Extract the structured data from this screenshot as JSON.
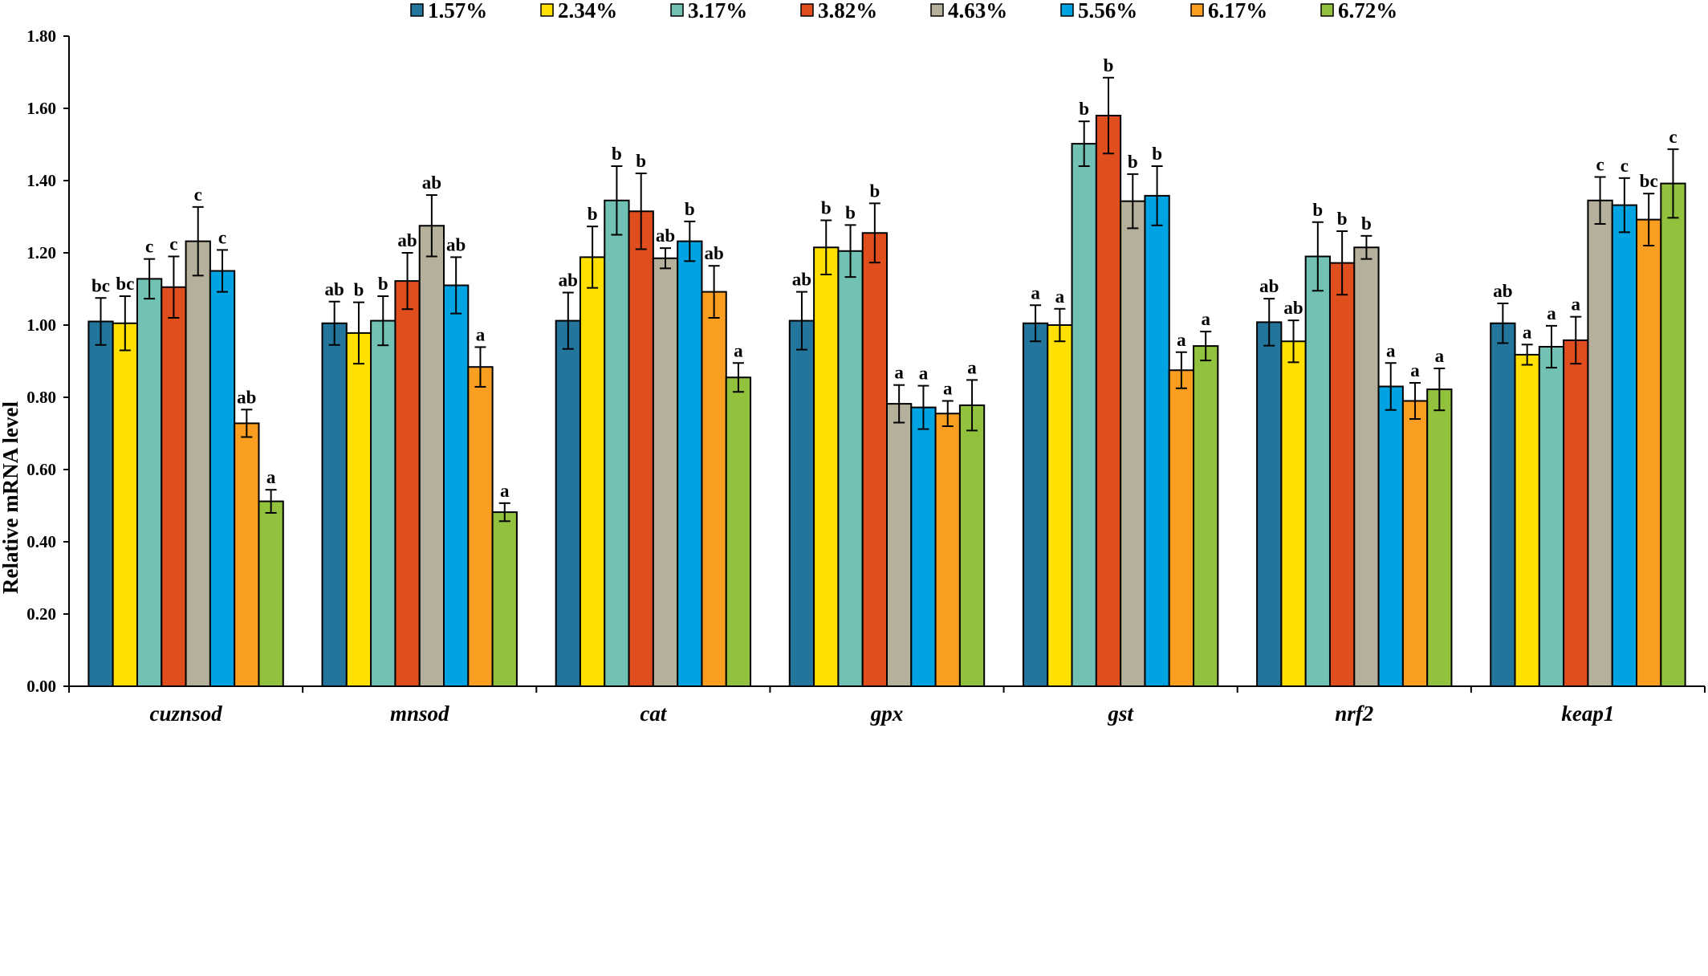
{
  "chart_data": {
    "type": "bar",
    "title": "",
    "xlabel": "",
    "ylabel": "Relative mRNA level",
    "ylim": [
      0,
      1.8
    ],
    "yticks": [
      "0.00",
      "0.20",
      "0.40",
      "0.60",
      "0.80",
      "1.00",
      "1.20",
      "1.40",
      "1.60",
      "1.80"
    ],
    "grid": false,
    "legend_position": "top",
    "categories": [
      "cuznsod",
      "mnsod",
      "cat",
      "gpx",
      "gst",
      "nrf2",
      "keap1"
    ],
    "series": [
      {
        "name": "1.57%",
        "color": "#23759B",
        "values": [
          1.01,
          1.005,
          1.012,
          1.012,
          1.005,
          1.008,
          1.005
        ],
        "errors": [
          0.065,
          0.06,
          0.078,
          0.08,
          0.05,
          0.065,
          0.055
        ],
        "labels": [
          "bc",
          "ab",
          "ab",
          "ab",
          "a",
          "ab",
          "ab"
        ]
      },
      {
        "name": "2.34%",
        "color": "#FFE000",
        "values": [
          1.005,
          0.978,
          1.188,
          1.215,
          1.0,
          0.955,
          0.918
        ],
        "errors": [
          0.075,
          0.085,
          0.085,
          0.075,
          0.045,
          0.058,
          0.028
        ],
        "labels": [
          "bc",
          "b",
          "b",
          "b",
          "a",
          "ab",
          "a"
        ]
      },
      {
        "name": "3.17%",
        "color": "#71C2B4",
        "values": [
          1.128,
          1.012,
          1.345,
          1.205,
          1.502,
          1.19,
          0.94
        ],
        "errors": [
          0.055,
          0.068,
          0.095,
          0.072,
          0.062,
          0.095,
          0.058
        ],
        "labels": [
          "c",
          "b",
          "b",
          "b",
          "b",
          "b",
          "a"
        ]
      },
      {
        "name": "3.82%",
        "color": "#E04E1E",
        "values": [
          1.105,
          1.122,
          1.315,
          1.255,
          1.58,
          1.172,
          0.958
        ],
        "errors": [
          0.085,
          0.078,
          0.105,
          0.082,
          0.105,
          0.088,
          0.065
        ],
        "labels": [
          "c",
          "ab",
          "b",
          "b",
          "b",
          "b",
          "a"
        ]
      },
      {
        "name": "4.63%",
        "color": "#B4B09C",
        "values": [
          1.232,
          1.275,
          1.185,
          0.782,
          1.343,
          1.215,
          1.345
        ],
        "errors": [
          0.095,
          0.085,
          0.028,
          0.052,
          0.075,
          0.032,
          0.065
        ],
        "labels": [
          "c",
          "ab",
          "ab",
          "a",
          "b",
          "b",
          "c"
        ]
      },
      {
        "name": "5.56%",
        "color": "#00A3E2",
        "values": [
          1.15,
          1.11,
          1.232,
          0.772,
          1.358,
          0.83,
          1.332
        ],
        "errors": [
          0.058,
          0.078,
          0.055,
          0.06,
          0.082,
          0.065,
          0.075
        ],
        "labels": [
          "c",
          "ab",
          "b",
          "a",
          "b",
          "a",
          "c"
        ]
      },
      {
        "name": "6.17%",
        "color": "#FA9E22",
        "values": [
          0.728,
          0.884,
          1.092,
          0.755,
          0.875,
          0.79,
          1.292
        ],
        "errors": [
          0.038,
          0.055,
          0.072,
          0.035,
          0.05,
          0.05,
          0.072
        ],
        "labels": [
          "ab",
          "a",
          "ab",
          "a",
          "a",
          "a",
          "bc"
        ]
      },
      {
        "name": "6.72%",
        "color": "#92C13D",
        "values": [
          0.512,
          0.482,
          0.855,
          0.778,
          0.942,
          0.822,
          1.392
        ],
        "errors": [
          0.032,
          0.025,
          0.04,
          0.07,
          0.04,
          0.058,
          0.095
        ],
        "labels": [
          "a",
          "a",
          "a",
          "a",
          "a",
          "a",
          "c"
        ]
      }
    ]
  }
}
